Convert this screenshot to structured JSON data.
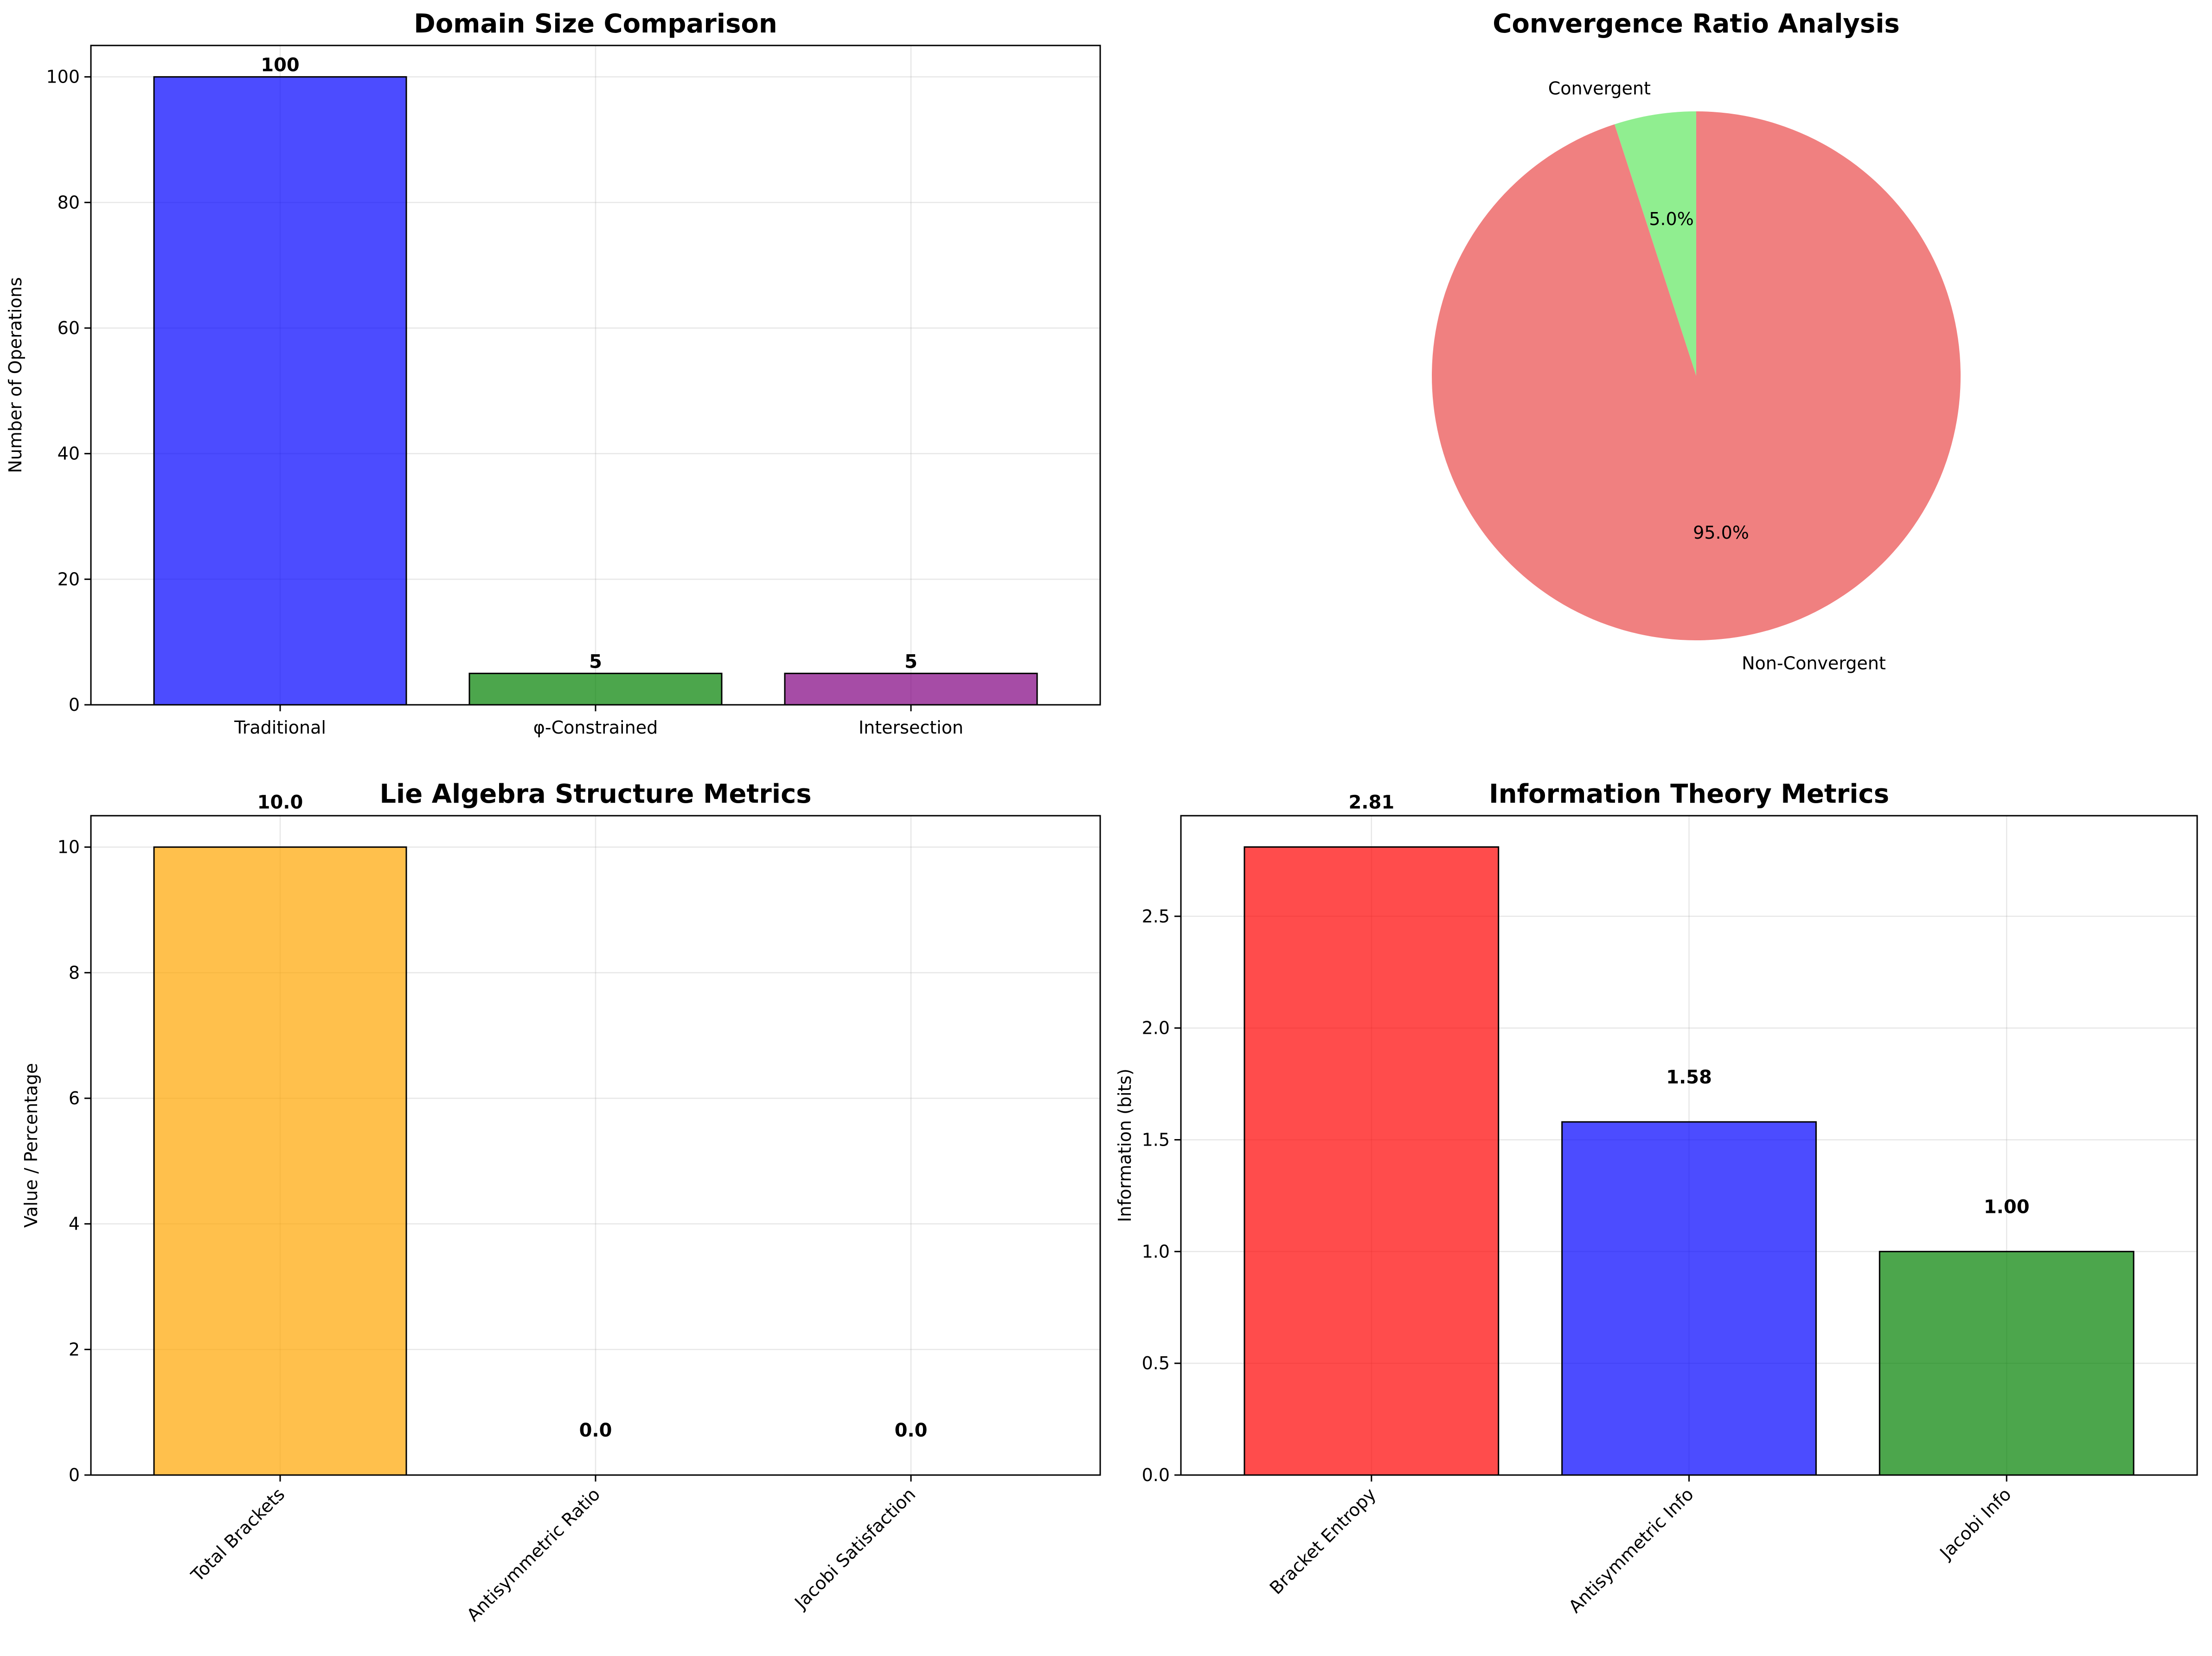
{
  "chart_data": [
    {
      "type": "bar",
      "title": "Domain Size Comparison",
      "xlabel": "",
      "ylabel": "Number of Operations",
      "categories": [
        "Traditional",
        "φ-Constrained",
        "Intersection"
      ],
      "values": [
        100,
        5,
        5
      ],
      "value_labels": [
        "100",
        "5",
        "5"
      ],
      "colors": [
        "#0000ff",
        "#008000",
        "#800080"
      ],
      "ylim": [
        0,
        105
      ],
      "yticks": [
        0,
        20,
        40,
        60,
        80,
        100
      ],
      "ytick_labels": [
        "0",
        "20",
        "40",
        "60",
        "80",
        "100"
      ],
      "grid": true
    },
    {
      "type": "pie",
      "title": "Convergence Ratio Analysis",
      "labels": [
        "Convergent",
        "Non-Convergent"
      ],
      "values": [
        5.0,
        95.0
      ],
      "pct_labels": [
        "5.0%",
        "95.0%"
      ],
      "colors": [
        "#90ee90",
        "#f08080"
      ]
    },
    {
      "type": "bar",
      "title": "Lie Algebra Structure Metrics",
      "xlabel": "",
      "ylabel": "Value / Percentage",
      "categories": [
        "Total Brackets",
        "Antisymmetric Ratio",
        "Jacobi Satisfaction"
      ],
      "values": [
        10.0,
        0.0,
        0.0
      ],
      "value_labels": [
        "10.0",
        "0.0",
        "0.0"
      ],
      "colors": [
        "#ffa500",
        "#800080",
        "#00ffff"
      ],
      "ylim": [
        0,
        10.5
      ],
      "yticks": [
        0,
        2,
        4,
        6,
        8,
        10
      ],
      "ytick_labels": [
        "0",
        "2",
        "4",
        "6",
        "8",
        "10"
      ],
      "grid": true
    },
    {
      "type": "bar",
      "title": "Information Theory Metrics",
      "xlabel": "",
      "ylabel": "Information (bits)",
      "categories": [
        "Bracket Entropy",
        "Antisymmetric Info",
        "Jacobi Info"
      ],
      "values": [
        2.81,
        1.58,
        1.0
      ],
      "value_labels": [
        "2.81",
        "1.58",
        "1.00"
      ],
      "colors": [
        "#ff0000",
        "#0000ff",
        "#008000"
      ],
      "ylim": [
        0,
        2.95
      ],
      "yticks": [
        0,
        0.5,
        1.0,
        1.5,
        2.0,
        2.5
      ],
      "ytick_labels": [
        "0.0",
        "0.5",
        "1.0",
        "1.5",
        "2.0",
        "2.5"
      ],
      "grid": true
    }
  ]
}
